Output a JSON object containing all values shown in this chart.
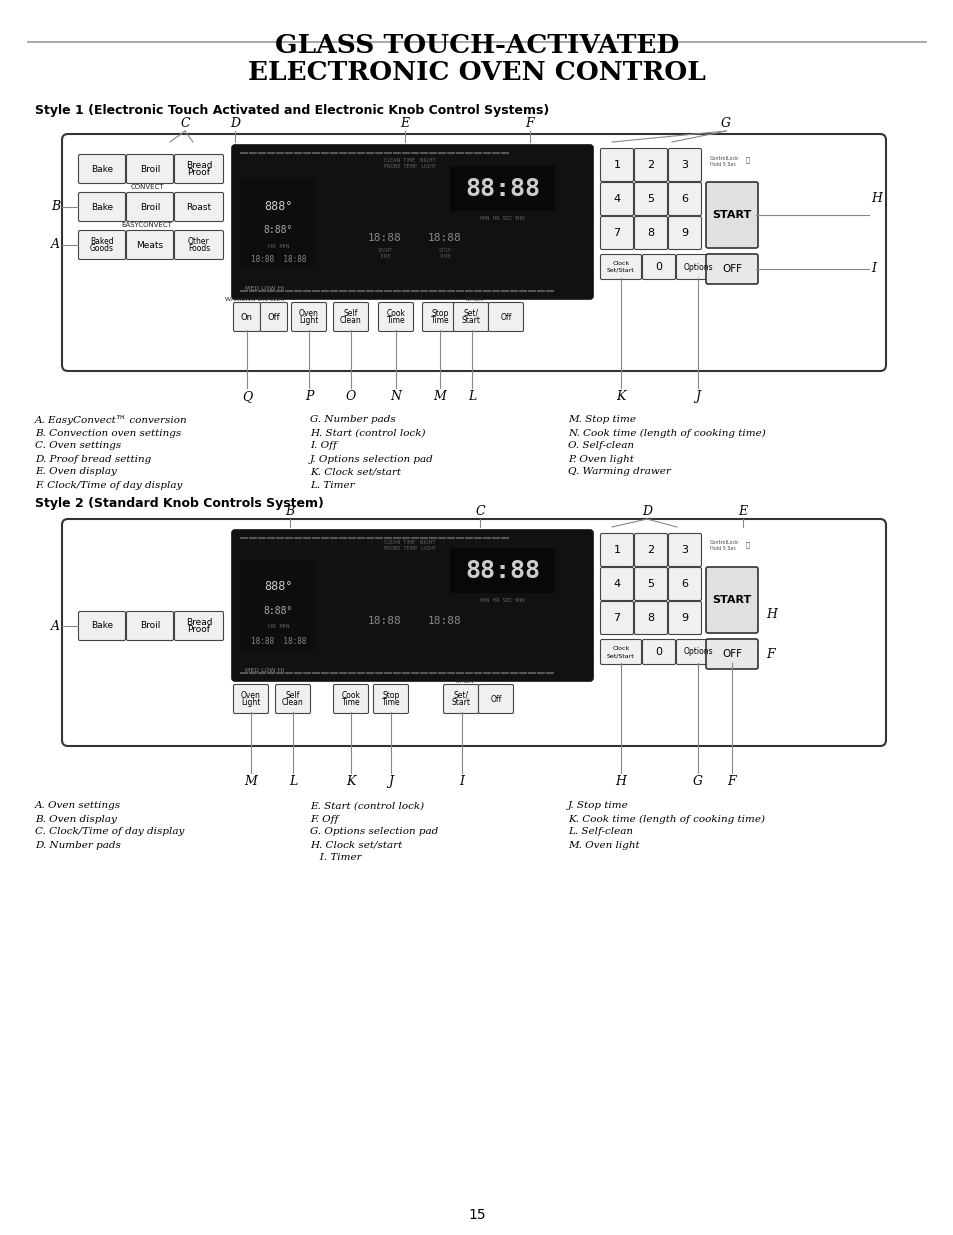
{
  "title_line1": "GLASS TOUCH-ACTIVATED",
  "title_line2": "ELECTRONIC OVEN CONTROL",
  "style1_heading": "Style 1 (Electronic Touch Activated and Electronic Knob Control Systems)",
  "style2_heading": "Style 2 (Standard Knob Controls System)",
  "bg_color": "#ffffff",
  "page_number": "15",
  "style1_legend_col1": [
    "A. EasyConvect™ conversion",
    "B. Convection oven settings",
    "C. Oven settings",
    "D. Proof bread setting",
    "E. Oven display",
    "F. Clock/Time of day display"
  ],
  "style1_legend_col2": [
    "G. Number pads",
    "H. Start (control lock)",
    "I. Off",
    "J. Options selection pad",
    "K. Clock set/start",
    "L. Timer"
  ],
  "style1_legend_col3": [
    "M. Stop time",
    "N. Cook time (length of cooking time)",
    "O. Self-clean",
    "P. Oven light",
    "Q. Warming drawer"
  ],
  "style2_legend_col1": [
    "A. Oven settings",
    "B. Oven display",
    "C. Clock/Time of day display",
    "D. Number pads"
  ],
  "style2_legend_col2": [
    "E. Start (control lock)",
    "F. Off",
    "G. Options selection pad",
    "H. Clock set/start",
    "   I. Timer"
  ],
  "style2_legend_col3": [
    "J. Stop time",
    "K. Cook time (length of cooking time)",
    "L. Self-clean",
    "M. Oven light"
  ]
}
